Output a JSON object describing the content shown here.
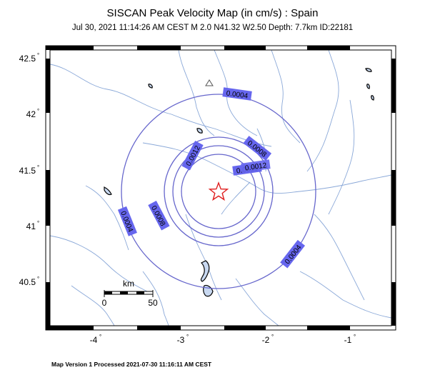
{
  "map": {
    "title": "SISCAN Peak Velocity Map (in cm/s) : Spain",
    "subtitle": "Jul 30, 2021 11:14:26 AM CEST   M 2.0   N41.32 W2.50   Depth: 7.7km   ID:22181",
    "footer": "Map Version 1 Processed 2021-07-30 11:16:11 AM CEST",
    "lat_labels": [
      "42.5",
      "42",
      "41.5",
      "41",
      "40.5"
    ],
    "lon_labels": [
      "-4",
      "-3",
      "-2",
      "-1"
    ],
    "contour_labels": [
      "0.0004",
      "0.0008",
      "0.0012",
      "0.0016",
      "0.0012",
      "0.0008",
      "0.0004",
      "0.0004"
    ],
    "scale": {
      "unit": "km",
      "min_label": "0",
      "max_label": "50"
    },
    "epicenter": {
      "lat": 41.32,
      "lon": -2.5
    },
    "colors": {
      "contour": "#6666cc",
      "rivers": "#8aa8d8",
      "label_fill": "#6666ee",
      "epicenter": "#e02020"
    }
  }
}
